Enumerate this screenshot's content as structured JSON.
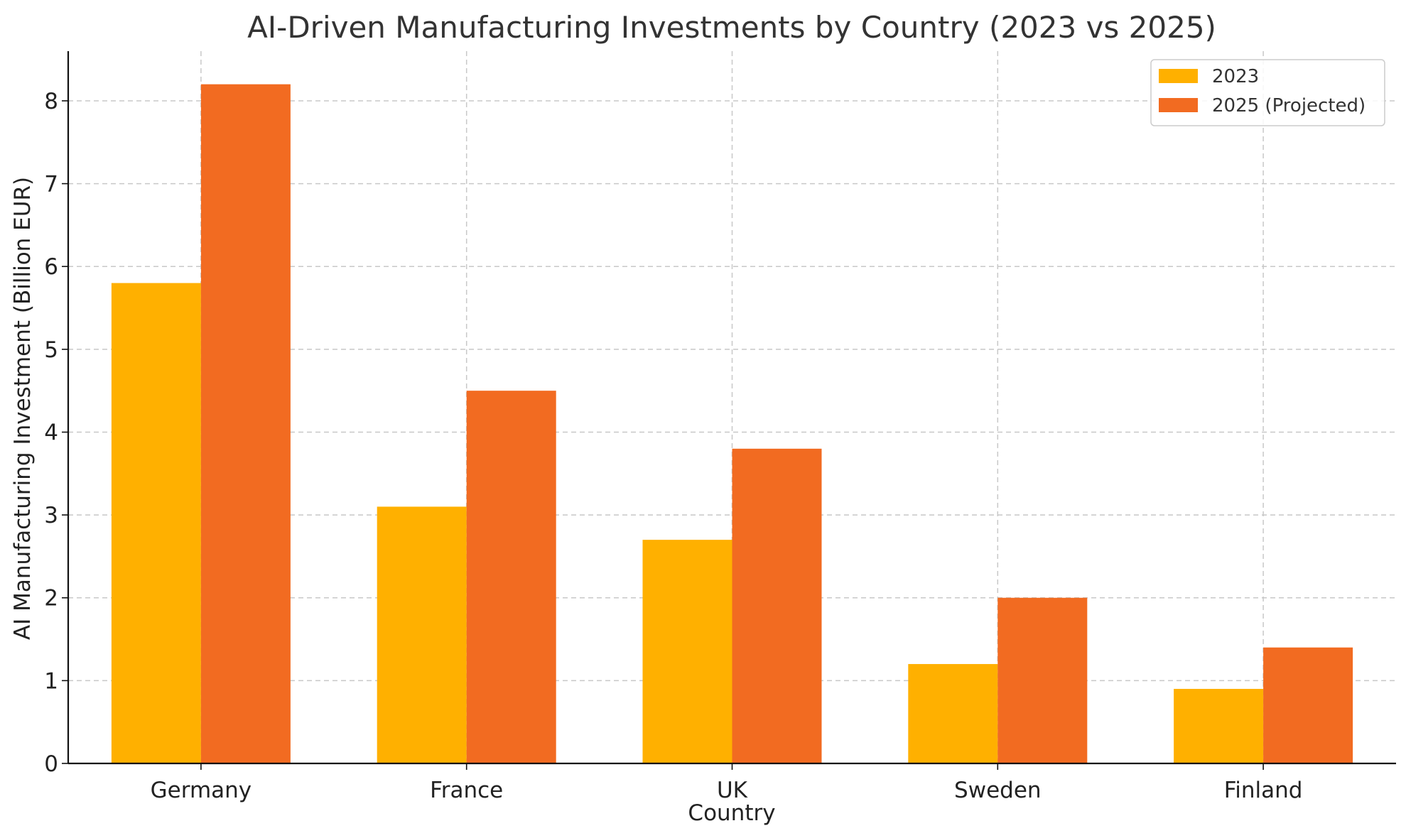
{
  "chart_data": {
    "type": "bar",
    "title": "AI-Driven Manufacturing Investments by Country (2023 vs 2025)",
    "xlabel": "Country",
    "ylabel": "AI Manufacturing Investment (Billion EUR)",
    "categories": [
      "Germany",
      "France",
      "UK",
      "Sweden",
      "Finland"
    ],
    "series": [
      {
        "name": "2023",
        "values": [
          5.8,
          3.1,
          2.7,
          1.2,
          0.9
        ],
        "color": "#FFB000"
      },
      {
        "name": "2025 (Projected)",
        "values": [
          8.2,
          4.5,
          3.8,
          2.0,
          1.4
        ],
        "color": "#F26B21"
      }
    ],
    "ylim": [
      0,
      8.6
    ],
    "yticks": [
      0,
      1,
      2,
      3,
      4,
      5,
      6,
      7,
      8
    ],
    "grid": true,
    "legend_position": "top-right"
  }
}
